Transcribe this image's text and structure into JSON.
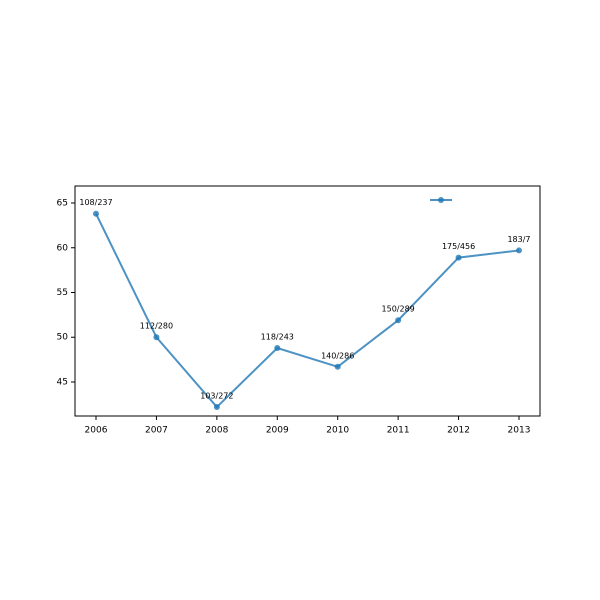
{
  "chart_data": {
    "type": "line",
    "categories": [
      "2006",
      "2007",
      "2008",
      "2009",
      "2010",
      "2011",
      "2012",
      "2013"
    ],
    "values": [
      63.8,
      50.0,
      42.2,
      48.8,
      46.7,
      51.9,
      58.9,
      59.7
    ],
    "annotations": [
      "108/237",
      "112/280",
      "103/272",
      "118/243",
      "140/286",
      "150/289",
      "175/456",
      "183/7"
    ],
    "color": "#1f77b4",
    "ylim": [
      41.2,
      66.9
    ],
    "yticks": [
      45,
      50,
      55,
      60,
      65
    ]
  }
}
